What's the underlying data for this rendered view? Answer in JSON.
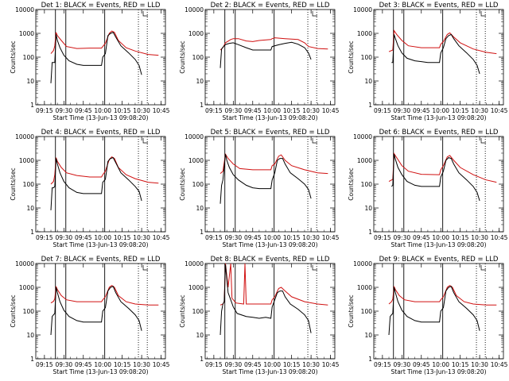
{
  "chart_data": {
    "type": "line",
    "yscale": "log",
    "ylim": [
      1,
      10000
    ],
    "ylabel": "Counts/sec",
    "xlabel": "Start Time (13-Jun-13 09:08:20)",
    "xticks": [
      "09:15",
      "09:30",
      "09:45",
      "10:00",
      "10:15",
      "10:30",
      "10:45"
    ],
    "yticks": [
      "1",
      "10",
      "100",
      "1000",
      "10000"
    ],
    "series_colors": {
      "events": "#000000",
      "lld": "#d01010"
    },
    "vlines_solid": [
      "09:23:30",
      "09:31:30",
      "10:01:30"
    ],
    "vlines_dotted": [
      "10:27:30",
      "10:34:20"
    ],
    "panels": [
      {
        "title": "Det 1: BLACK = Events, RED = LLD",
        "events": {
          "t": [
            "09:20",
            "09:21",
            "09:22",
            "09:23",
            "09:24",
            "09:25",
            "09:27",
            "09:30",
            "09:34",
            "09:40",
            "09:45",
            "09:50",
            "09:55",
            "09:59",
            "10:00",
            "10:02",
            "10:04",
            "10:06",
            "10:08",
            "10:10",
            "10:14",
            "10:20",
            "10:25",
            "10:28",
            "10:30"
          ],
          "v": [
            8,
            60,
            60,
            60,
            900,
            500,
            250,
            120,
            70,
            50,
            45,
            45,
            45,
            45,
            100,
            140,
            800,
            1000,
            1100,
            700,
            300,
            150,
            80,
            45,
            18
          ]
        },
        "lld": {
          "t": [
            "09:20",
            "09:22",
            "09:23",
            "09:24",
            "09:25",
            "09:28",
            "09:32",
            "09:40",
            "09:50",
            "09:59",
            "10:00",
            "10:02",
            "10:05",
            "10:07",
            "10:09",
            "10:12",
            "10:18",
            "10:25",
            "10:35",
            "10:43"
          ],
          "v": [
            140,
            190,
            300,
            1100,
            800,
            500,
            280,
            230,
            240,
            240,
            280,
            380,
            1000,
            1250,
            1100,
            500,
            250,
            180,
            130,
            120
          ]
        }
      },
      {
        "title": "Det 2: BLACK = Events, RED = LLD",
        "events": {
          "t": [
            "09:20",
            "09:21",
            "09:22",
            "09:23",
            "09:24",
            "09:27",
            "09:30",
            "09:33",
            "09:40",
            "09:45",
            "09:50",
            "09:55",
            "09:59",
            "10:00",
            "10:05",
            "10:10",
            "10:15",
            "10:20",
            "10:25",
            "10:28",
            "10:30"
          ],
          "v": [
            35,
            220,
            260,
            300,
            340,
            380,
            400,
            350,
            250,
            200,
            200,
            200,
            200,
            280,
            330,
            380,
            420,
            350,
            250,
            150,
            80
          ]
        },
        "lld": {
          "t": [
            "09:20",
            "09:22",
            "09:24",
            "09:28",
            "09:30",
            "09:34",
            "09:40",
            "09:45",
            "09:50",
            "09:59",
            "10:00",
            "10:02",
            "10:10",
            "10:20",
            "10:25",
            "10:28",
            "10:35",
            "10:43"
          ],
          "v": [
            200,
            250,
            400,
            550,
            600,
            600,
            480,
            450,
            500,
            550,
            600,
            650,
            600,
            550,
            400,
            280,
            230,
            220
          ]
        }
      },
      {
        "title": "Det 3: BLACK = Events, RED = LLD",
        "events": {
          "t": [
            "09:22",
            "09:23",
            "09:24",
            "09:25",
            "09:27",
            "09:30",
            "09:34",
            "09:40",
            "09:45",
            "09:50",
            "09:55",
            "09:59",
            "10:00",
            "10:02",
            "10:04",
            "10:06",
            "10:08",
            "10:10",
            "10:14",
            "10:20",
            "10:25",
            "10:28",
            "10:30"
          ],
          "v": [
            60,
            60,
            900,
            600,
            300,
            150,
            90,
            70,
            65,
            60,
            60,
            60,
            150,
            250,
            600,
            800,
            900,
            600,
            300,
            150,
            80,
            45,
            20
          ]
        },
        "lld": {
          "t": [
            "09:20",
            "09:23",
            "09:24",
            "09:26",
            "09:30",
            "09:35",
            "09:45",
            "09:59",
            "10:00",
            "10:02",
            "10:05",
            "10:07",
            "10:10",
            "10:15",
            "10:25",
            "10:35",
            "10:43"
          ],
          "v": [
            170,
            200,
            1300,
            900,
            500,
            300,
            250,
            250,
            350,
            450,
            900,
            1050,
            700,
            400,
            220,
            160,
            140
          ]
        }
      },
      {
        "title": "Det 4: BLACK = Events, RED = LLD",
        "events": {
          "t": [
            "09:20",
            "09:21",
            "09:22",
            "09:23",
            "09:24",
            "09:25",
            "09:27",
            "09:30",
            "09:34",
            "09:40",
            "09:45",
            "09:50",
            "09:55",
            "09:59",
            "10:00",
            "10:02",
            "10:04",
            "10:06",
            "10:08",
            "10:10",
            "10:14",
            "10:20",
            "10:25",
            "10:28",
            "10:30"
          ],
          "v": [
            8,
            70,
            70,
            80,
            1200,
            700,
            300,
            130,
            70,
            45,
            40,
            40,
            40,
            40,
            120,
            160,
            900,
            1200,
            1300,
            800,
            300,
            150,
            80,
            50,
            20
          ]
        },
        "lld": {
          "t": [
            "09:20",
            "09:22",
            "09:23",
            "09:24",
            "09:25",
            "09:28",
            "09:32",
            "09:40",
            "09:50",
            "09:59",
            "10:00",
            "10:02",
            "10:05",
            "10:07",
            "10:09",
            "10:12",
            "10:18",
            "10:25",
            "10:35",
            "10:43"
          ],
          "v": [
            100,
            130,
            250,
            1300,
            900,
            500,
            300,
            230,
            200,
            200,
            250,
            350,
            1100,
            1400,
            1200,
            500,
            250,
            170,
            120,
            110
          ]
        }
      },
      {
        "title": "Det 5: BLACK = Events, RED = LLD",
        "events": {
          "t": [
            "09:20",
            "09:21",
            "09:22",
            "09:24",
            "09:25",
            "09:27",
            "09:30",
            "09:34",
            "09:40",
            "09:45",
            "09:50",
            "09:55",
            "09:59",
            "10:00",
            "10:02",
            "10:04",
            "10:06",
            "10:08",
            "10:10",
            "10:14",
            "10:20",
            "10:25",
            "10:28",
            "10:30"
          ],
          "v": [
            15,
            90,
            150,
            1800,
            1000,
            500,
            250,
            150,
            90,
            70,
            65,
            65,
            65,
            150,
            300,
            1000,
            1200,
            1200,
            700,
            300,
            170,
            100,
            60,
            25
          ]
        },
        "lld": {
          "t": [
            "09:20",
            "09:22",
            "09:24",
            "09:26",
            "09:30",
            "09:35",
            "09:45",
            "09:59",
            "10:00",
            "10:02",
            "10:05",
            "10:07",
            "10:10",
            "10:15",
            "10:25",
            "10:35",
            "10:43"
          ],
          "v": [
            280,
            350,
            1800,
            1200,
            700,
            450,
            400,
            400,
            600,
            700,
            1500,
            1700,
            1000,
            600,
            400,
            300,
            280
          ]
        }
      },
      {
        "title": "Det 6: BLACK = Events, RED = LLD",
        "events": {
          "t": [
            "09:22",
            "09:23",
            "09:24",
            "09:25",
            "09:27",
            "09:30",
            "09:34",
            "09:40",
            "09:45",
            "09:50",
            "09:55",
            "09:59",
            "10:00",
            "10:02",
            "10:04",
            "10:06",
            "10:08",
            "10:10",
            "10:14",
            "10:20",
            "10:25",
            "10:28",
            "10:30"
          ],
          "v": [
            80,
            90,
            1800,
            1100,
            500,
            250,
            130,
            90,
            80,
            80,
            80,
            80,
            200,
            350,
            1000,
            1300,
            1200,
            700,
            300,
            150,
            80,
            45,
            20
          ]
        },
        "lld": {
          "t": [
            "09:20",
            "09:23",
            "09:24",
            "09:26",
            "09:30",
            "09:35",
            "09:45",
            "09:59",
            "10:00",
            "10:02",
            "10:05",
            "10:07",
            "10:10",
            "10:15",
            "10:25",
            "10:35",
            "10:43"
          ],
          "v": [
            130,
            160,
            1900,
            1300,
            600,
            350,
            260,
            250,
            400,
            600,
            1400,
            1600,
            1000,
            500,
            250,
            150,
            120
          ]
        }
      },
      {
        "title": "Det 7: BLACK = Events, RED = LLD",
        "events": {
          "t": [
            "09:20",
            "09:21",
            "09:22",
            "09:23",
            "09:24",
            "09:25",
            "09:27",
            "09:30",
            "09:34",
            "09:40",
            "09:45",
            "09:50",
            "09:55",
            "09:59",
            "10:00",
            "10:02",
            "10:04",
            "10:06",
            "10:08",
            "10:10",
            "10:14",
            "10:20",
            "10:25",
            "10:28",
            "10:30"
          ],
          "v": [
            10,
            60,
            70,
            80,
            1000,
            600,
            250,
            110,
            60,
            40,
            35,
            35,
            35,
            35,
            100,
            140,
            700,
            1000,
            1100,
            600,
            250,
            130,
            70,
            40,
            15
          ]
        },
        "lld": {
          "t": [
            "09:20",
            "09:22",
            "09:23",
            "09:24",
            "09:25",
            "09:28",
            "09:32",
            "09:40",
            "09:50",
            "09:59",
            "10:00",
            "10:02",
            "10:05",
            "10:07",
            "10:09",
            "10:12",
            "10:18",
            "10:25",
            "10:35",
            "10:43"
          ],
          "v": [
            220,
            260,
            330,
            1100,
            800,
            450,
            300,
            250,
            250,
            250,
            300,
            400,
            1000,
            1200,
            1000,
            450,
            250,
            200,
            180,
            180
          ]
        }
      },
      {
        "title": "Det 8: BLACK = Events, RED = LLD",
        "events": {
          "t": [
            "09:20",
            "09:21",
            "09:22",
            "09:23",
            "09:24",
            "09:26",
            "09:28",
            "09:30",
            "09:33",
            "09:40",
            "09:45",
            "09:50",
            "09:55",
            "09:59",
            "10:00",
            "10:02",
            "10:04",
            "10:06",
            "10:08",
            "10:10",
            "10:14",
            "10:20",
            "10:25",
            "10:28",
            "10:30"
          ],
          "v": [
            10,
            100,
            200,
            250,
            9000,
            600,
            300,
            150,
            80,
            60,
            55,
            50,
            55,
            50,
            150,
            300,
            600,
            700,
            700,
            400,
            200,
            120,
            70,
            40,
            12
          ]
        },
        "lld": {
          "t": [
            "09:20",
            "09:22",
            "09:23",
            "09:24",
            "09:26",
            "09:28",
            "09:29",
            "09:32",
            "09:38",
            "09:39",
            "09:40",
            "09:41",
            "09:45",
            "09:50",
            "09:59",
            "10:00",
            "10:02",
            "10:05",
            "10:07",
            "10:10",
            "10:15",
            "10:25",
            "10:35",
            "10:43"
          ],
          "v": [
            180,
            200,
            250,
            10000,
            1000,
            10000,
            350,
            220,
            200,
            10000,
            200,
            200,
            200,
            200,
            200,
            300,
            400,
            900,
            1000,
            700,
            400,
            250,
            200,
            180
          ]
        }
      },
      {
        "title": "Det 9: BLACK = Events, RED = LLD",
        "events": {
          "t": [
            "09:20",
            "09:21",
            "09:22",
            "09:23",
            "09:24",
            "09:25",
            "09:27",
            "09:30",
            "09:34",
            "09:40",
            "09:45",
            "09:50",
            "09:55",
            "09:59",
            "10:00",
            "10:02",
            "10:04",
            "10:06",
            "10:08",
            "10:10",
            "10:14",
            "10:20",
            "10:25",
            "10:28",
            "10:30"
          ],
          "v": [
            10,
            60,
            70,
            80,
            1000,
            600,
            250,
            110,
            60,
            40,
            35,
            35,
            35,
            35,
            100,
            140,
            700,
            1000,
            1100,
            600,
            250,
            130,
            70,
            40,
            15
          ]
        },
        "lld": {
          "t": [
            "09:20",
            "09:22",
            "09:23",
            "09:24",
            "09:25",
            "09:28",
            "09:32",
            "09:40",
            "09:50",
            "09:59",
            "10:00",
            "10:02",
            "10:05",
            "10:07",
            "10:09",
            "10:12",
            "10:18",
            "10:25",
            "10:35",
            "10:43"
          ],
          "v": [
            200,
            250,
            320,
            1100,
            800,
            450,
            300,
            250,
            250,
            250,
            300,
            400,
            1000,
            1200,
            1000,
            450,
            250,
            200,
            180,
            180
          ]
        }
      }
    ]
  }
}
